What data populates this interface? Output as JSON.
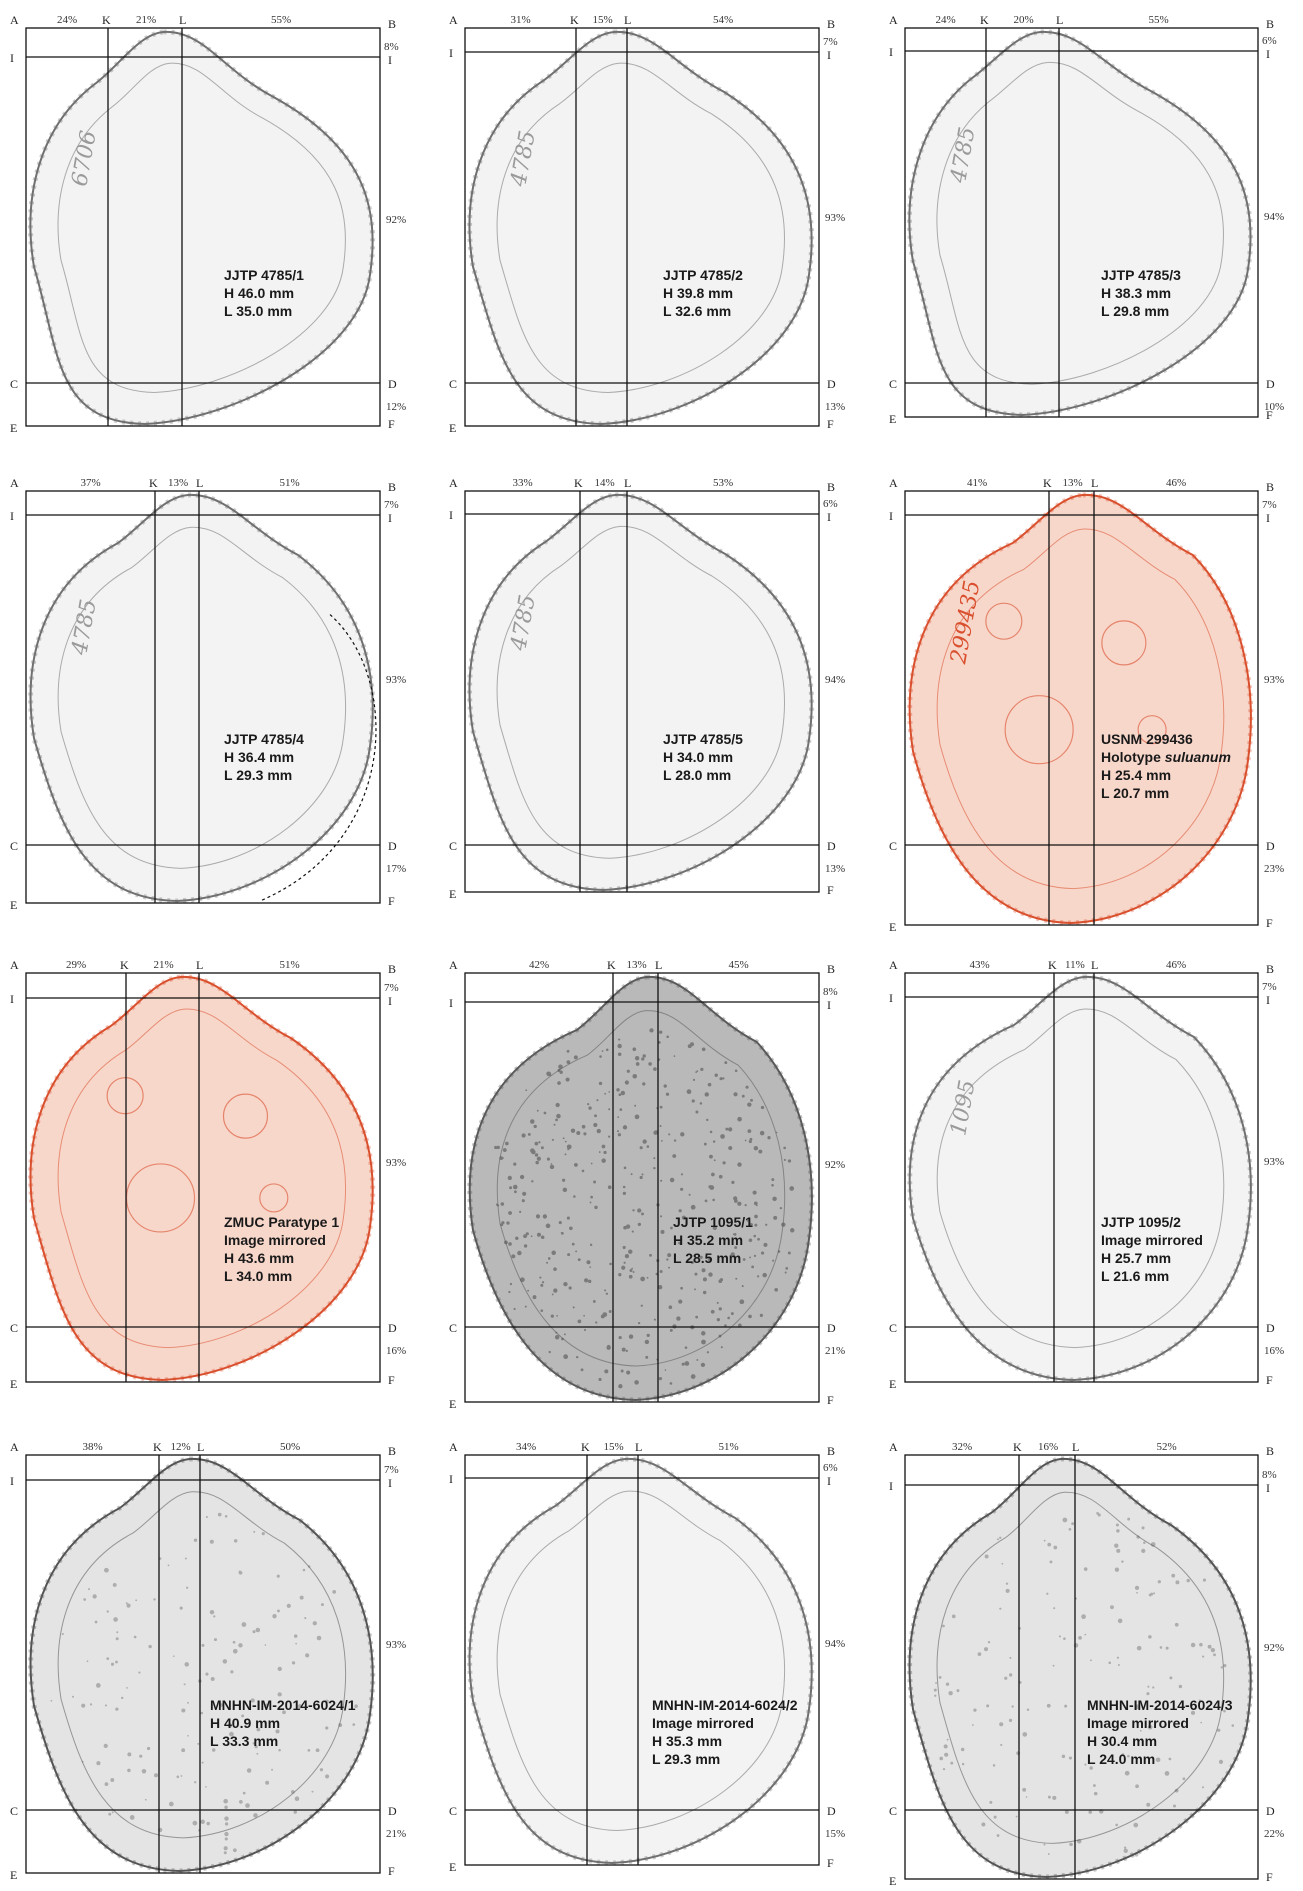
{
  "colors": {
    "shell_gray": "#707070",
    "shell_fill_gray": "#f3f3f3",
    "shell_dark_fill": "#b9b9b9",
    "shell_red": "#d9502e",
    "shell_fill_red": "#f8d7cb",
    "frame": "#111111"
  },
  "panels": [
    {
      "corner_labels": {
        "a": "A",
        "b": "B",
        "c": "C",
        "d": "D",
        "e": "E",
        "f": "F",
        "i_left": "I",
        "i_right": "I",
        "k": "K",
        "l": "L"
      },
      "left_pct": "24%",
      "mid_pct": "21%",
      "right_pct": "55%",
      "top_pct": "8%",
      "height_pct": "92%",
      "bottom_pct": "12%",
      "label": {
        "line1": "JJTP 4785/1",
        "line2": "H 46.0 mm",
        "line3": "L 35.0 mm"
      },
      "tint": "gray",
      "handwritten": "6706"
    },
    {
      "corner_labels": {
        "a": "A",
        "b": "B",
        "c": "C",
        "d": "D",
        "e": "E",
        "f": "F",
        "i_left": "I",
        "i_right": "I",
        "k": "K",
        "l": "L"
      },
      "left_pct": "31%",
      "mid_pct": "15%",
      "right_pct": "54%",
      "top_pct": "7%",
      "height_pct": "93%",
      "bottom_pct": "13%",
      "label": {
        "line1": "JJTP 4785/2",
        "line2": "H 39.8 mm",
        "line3": "L 32.6 mm"
      },
      "tint": "gray",
      "handwritten": "4785"
    },
    {
      "corner_labels": {
        "a": "A",
        "b": "B",
        "c": "C",
        "d": "D",
        "e": "E",
        "f": "F",
        "i_left": "I",
        "i_right": "I",
        "k": "K",
        "l": "L"
      },
      "left_pct": "24%",
      "mid_pct": "20%",
      "right_pct": "55%",
      "top_pct": "6%",
      "height_pct": "94%",
      "bottom_pct": "10%",
      "label": {
        "line1": "JJTP 4785/3",
        "line2": "H 38.3 mm",
        "line3": "L 29.8 mm"
      },
      "tint": "gray",
      "handwritten": "4785"
    },
    {
      "corner_labels": {
        "a": "A",
        "b": "B",
        "c": "C",
        "d": "D",
        "e": "E",
        "f": "F",
        "i_left": "I",
        "i_right": "I",
        "k": "K",
        "l": "L"
      },
      "left_pct": "37%",
      "mid_pct": "13%",
      "right_pct": "51%",
      "top_pct": "7%",
      "height_pct": "93%",
      "bottom_pct": "17%",
      "label": {
        "line1": "JJTP 4785/4",
        "line2": "H 36.4 mm",
        "line3": "L 29.3 mm"
      },
      "tint": "gray",
      "handwritten": "4785",
      "broken": true
    },
    {
      "corner_labels": {
        "a": "A",
        "b": "B",
        "c": "C",
        "d": "D",
        "e": "E",
        "f": "F",
        "i_left": "I",
        "i_right": "I",
        "k": "K",
        "l": "L"
      },
      "left_pct": "33%",
      "mid_pct": "14%",
      "right_pct": "53%",
      "top_pct": "6%",
      "height_pct": "94%",
      "bottom_pct": "13%",
      "label": {
        "line1": "JJTP 4785/5",
        "line2": "H 34.0 mm",
        "line3": "L 28.0 mm"
      },
      "tint": "gray",
      "handwritten": "4785"
    },
    {
      "corner_labels": {
        "a": "A",
        "b": "B",
        "c": "C",
        "d": "D",
        "e": "E",
        "f": "F",
        "i_left": "I",
        "i_right": "I",
        "k": "K",
        "l": "L"
      },
      "left_pct": "41%",
      "mid_pct": "13%",
      "right_pct": "46%",
      "top_pct": "7%",
      "height_pct": "93%",
      "bottom_pct": "23%",
      "label": {
        "line1": "USNM 299436",
        "line2_prefix": "Holotype ",
        "line2_italic": "suluanum",
        "line3": "H 25.4 mm",
        "line4": "L 20.7 mm"
      },
      "tint": "red",
      "handwritten": "299435"
    },
    {
      "corner_labels": {
        "a": "A",
        "b": "B",
        "c": "C",
        "d": "D",
        "e": "E",
        "f": "F",
        "i_left": "I",
        "i_right": "I",
        "k": "K",
        "l": "L"
      },
      "left_pct": "29%",
      "mid_pct": "21%",
      "right_pct": "51%",
      "top_pct": "7%",
      "height_pct": "93%",
      "bottom_pct": "16%",
      "label": {
        "line1": "ZMUC Paratype 1",
        "line2": "Image mirrored",
        "line3": "H 43.6 mm",
        "line4": "L 34.0 mm"
      },
      "tint": "red"
    },
    {
      "corner_labels": {
        "a": "A",
        "b": "B",
        "c": "C",
        "d": "D",
        "e": "E",
        "f": "F",
        "i_left": "I",
        "i_right": "I",
        "k": "K",
        "l": "L"
      },
      "left_pct": "42%",
      "mid_pct": "13%",
      "right_pct": "45%",
      "top_pct": "8%",
      "height_pct": "92%",
      "bottom_pct": "21%",
      "label": {
        "line1": "JJTP 1095/1",
        "line2": "H 35.2 mm",
        "line3": "L 28.5 mm"
      },
      "tint": "dark"
    },
    {
      "corner_labels": {
        "a": "A",
        "b": "B",
        "c": "C",
        "d": "D",
        "e": "E",
        "f": "F",
        "i_left": "I",
        "i_right": "I",
        "k": "K",
        "l": "L"
      },
      "left_pct": "43%",
      "mid_pct": "11%",
      "right_pct": "46%",
      "top_pct": "7%",
      "height_pct": "93%",
      "bottom_pct": "16%",
      "label": {
        "line1": "JJTP 1095/2",
        "line2": "Image mirrored",
        "line3": "H 25.7 mm",
        "line4": "L 21.6 mm"
      },
      "tint": "gray",
      "handwritten": "1095"
    },
    {
      "corner_labels": {
        "a": "A",
        "b": "B",
        "c": "C",
        "d": "D",
        "e": "E",
        "f": "F",
        "i_left": "I",
        "i_right": "I",
        "k": "K",
        "l": "L"
      },
      "left_pct": "38%",
      "mid_pct": "12%",
      "right_pct": "50%",
      "top_pct": "7%",
      "height_pct": "93%",
      "bottom_pct": "21%",
      "label": {
        "line1": "MNHN-IM-2014-6024/1",
        "line2": "H 40.9 mm",
        "line3": "L 33.3 mm"
      },
      "tint": "speckle"
    },
    {
      "corner_labels": {
        "a": "A",
        "b": "B",
        "c": "C",
        "d": "D",
        "e": "E",
        "f": "F",
        "i_left": "I",
        "i_right": "I",
        "k": "K",
        "l": "L"
      },
      "left_pct": "34%",
      "mid_pct": "15%",
      "right_pct": "51%",
      "top_pct": "6%",
      "height_pct": "94%",
      "bottom_pct": "15%",
      "label": {
        "line1": "MNHN-IM-2014-6024/2",
        "line2": "Image mirrored",
        "line3": "H 35.3 mm",
        "line4": "L 29.3 mm"
      },
      "tint": "gray"
    },
    {
      "corner_labels": {
        "a": "A",
        "b": "B",
        "c": "C",
        "d": "D",
        "e": "E",
        "f": "F",
        "i_left": "I",
        "i_right": "I",
        "k": "K",
        "l": "L"
      },
      "left_pct": "32%",
      "mid_pct": "16%",
      "right_pct": "52%",
      "top_pct": "8%",
      "height_pct": "92%",
      "bottom_pct": "22%",
      "label": {
        "line1": "MNHN-IM-2014-6024/3",
        "line2": "Image mirrored",
        "line3": "H 30.4 mm",
        "line4": "L 24.0 mm"
      },
      "tint": "speckle"
    }
  ]
}
